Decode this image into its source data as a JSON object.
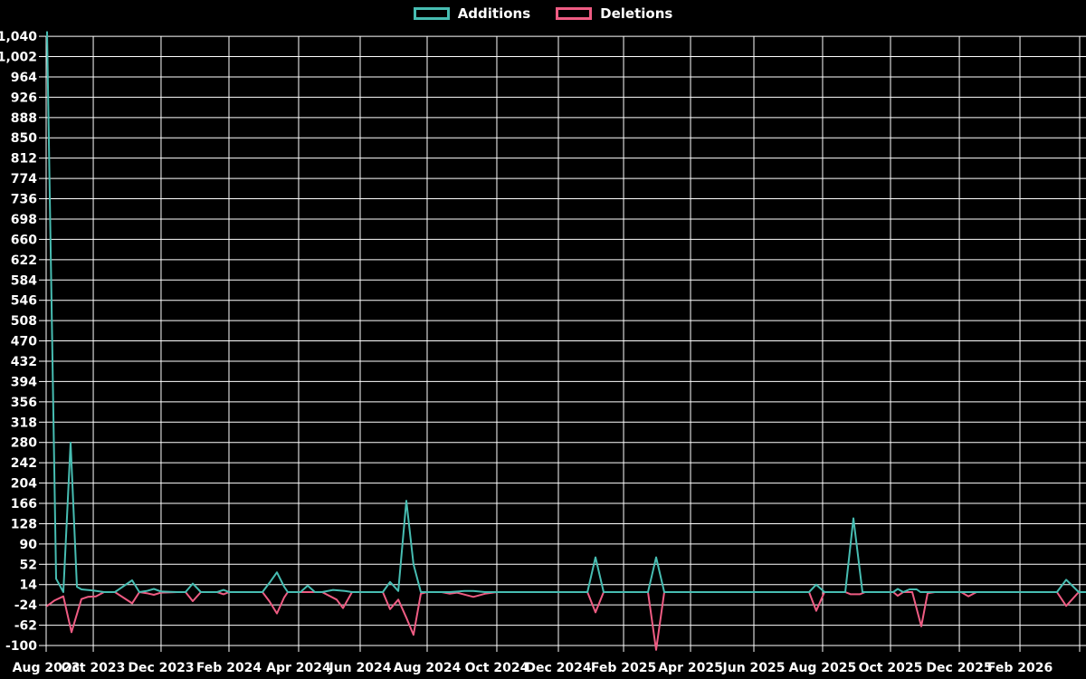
{
  "chart_data": {
    "type": "line",
    "title": "",
    "background_color": "#000000",
    "grid": true,
    "grid_color": "#ffffff",
    "text_color": "#ffffff",
    "legend_position": "top-center",
    "y_axis": {
      "max": 1040,
      "step": 38,
      "min": -100,
      "tick_labels": [
        "1,040",
        "1,002",
        "964",
        "926",
        "888",
        "850",
        "812",
        "774",
        "736",
        "698",
        "660",
        "622",
        "584",
        "546",
        "508",
        "470",
        "432",
        "394",
        "356",
        "318",
        "280",
        "242",
        "204",
        "166",
        "128",
        "90",
        "52",
        "14",
        "-24",
        "-62",
        "-100"
      ]
    },
    "x_axis": {
      "ticks": [
        {
          "label": "Aug 2023",
          "pos": 0.0
        },
        {
          "label": "Oct 2023",
          "pos": 4.53
        },
        {
          "label": "Dec 2023",
          "pos": 11.05
        },
        {
          "label": "Feb 2024",
          "pos": 17.58
        },
        {
          "label": "Apr 2024",
          "pos": 24.28
        },
        {
          "label": "Jun 2024",
          "pos": 30.2
        },
        {
          "label": "Aug 2024",
          "pos": 36.64
        },
        {
          "label": "Oct 2024",
          "pos": 43.34
        },
        {
          "label": "Dec 2024",
          "pos": 49.26
        },
        {
          "label": "Feb 2025",
          "pos": 55.53
        },
        {
          "label": "Apr 2025",
          "pos": 61.97
        },
        {
          "label": "Jun 2025",
          "pos": 68.06
        },
        {
          "label": "Aug 2025",
          "pos": 74.67
        },
        {
          "label": "Oct 2025",
          "pos": 81.2
        },
        {
          "label": "Dec 2025",
          "pos": 87.82
        },
        {
          "label": "Feb 2026",
          "pos": 93.65
        },
        {
          "label": "",
          "pos": 99.39
        }
      ]
    },
    "series": [
      {
        "name": "Additions",
        "color": "#47bdb2",
        "points": [
          [
            0.09,
            1048
          ],
          [
            0.96,
            25
          ],
          [
            1.65,
            0
          ],
          [
            2.35,
            280
          ],
          [
            2.96,
            10
          ],
          [
            3.39,
            5
          ],
          [
            4.53,
            3
          ],
          [
            5.57,
            0
          ],
          [
            6.61,
            0
          ],
          [
            8.27,
            22
          ],
          [
            8.96,
            0
          ],
          [
            9.66,
            2
          ],
          [
            10.36,
            6
          ],
          [
            11.05,
            1
          ],
          [
            12.62,
            0
          ],
          [
            13.4,
            0
          ],
          [
            14.1,
            16
          ],
          [
            14.88,
            0
          ],
          [
            16.45,
            0
          ],
          [
            17.06,
            4
          ],
          [
            17.58,
            0
          ],
          [
            20.8,
            0
          ],
          [
            21.5,
            18
          ],
          [
            22.19,
            37
          ],
          [
            22.89,
            10
          ],
          [
            23.24,
            0
          ],
          [
            24.46,
            0
          ],
          [
            25.15,
            12
          ],
          [
            25.85,
            0
          ],
          [
            26.54,
            0
          ],
          [
            27.59,
            4
          ],
          [
            28.72,
            2
          ],
          [
            29.42,
            0
          ],
          [
            32.38,
            0
          ],
          [
            33.07,
            19
          ],
          [
            33.86,
            2
          ],
          [
            34.64,
            171
          ],
          [
            35.33,
            52
          ],
          [
            36.03,
            0
          ],
          [
            38.03,
            0
          ],
          [
            38.82,
            0
          ],
          [
            40.21,
            2
          ],
          [
            41.08,
            2
          ],
          [
            42.21,
            0
          ],
          [
            52.05,
            0
          ],
          [
            52.83,
            65
          ],
          [
            53.61,
            0
          ],
          [
            57.88,
            0
          ],
          [
            58.66,
            65
          ],
          [
            59.44,
            0
          ],
          [
            73.37,
            0
          ],
          [
            74.06,
            14
          ],
          [
            74.85,
            0
          ],
          [
            76.85,
            0
          ],
          [
            77.63,
            138
          ],
          [
            78.5,
            0
          ],
          [
            81.46,
            0
          ],
          [
            81.9,
            6
          ],
          [
            82.42,
            0
          ],
          [
            83.03,
            5
          ],
          [
            83.72,
            5
          ],
          [
            84.07,
            0
          ],
          [
            87.99,
            0
          ],
          [
            88.69,
            0
          ],
          [
            97.21,
            0
          ],
          [
            98.09,
            23
          ],
          [
            99.3,
            0
          ],
          [
            100.0,
            0
          ]
        ]
      },
      {
        "name": "Deletions",
        "color": "#ef5c83",
        "points": [
          [
            0.09,
            -26
          ],
          [
            0.78,
            -16
          ],
          [
            1.65,
            -8
          ],
          [
            2.44,
            -75
          ],
          [
            3.39,
            -13
          ],
          [
            4.0,
            -9
          ],
          [
            4.79,
            -8
          ],
          [
            5.57,
            0
          ],
          [
            6.61,
            0
          ],
          [
            8.27,
            -21
          ],
          [
            8.96,
            0
          ],
          [
            9.66,
            -2
          ],
          [
            10.36,
            -5
          ],
          [
            11.05,
            -1
          ],
          [
            12.62,
            0
          ],
          [
            13.4,
            0
          ],
          [
            14.1,
            -17
          ],
          [
            14.88,
            0
          ],
          [
            16.45,
            0
          ],
          [
            17.06,
            -4
          ],
          [
            17.58,
            0
          ],
          [
            20.8,
            0
          ],
          [
            21.5,
            -18
          ],
          [
            22.19,
            -40
          ],
          [
            22.89,
            -10
          ],
          [
            23.24,
            0
          ],
          [
            24.46,
            0
          ],
          [
            25.85,
            0
          ],
          [
            26.54,
            0
          ],
          [
            27.94,
            -14
          ],
          [
            28.55,
            -30
          ],
          [
            29.42,
            0
          ],
          [
            32.38,
            0
          ],
          [
            33.07,
            -32
          ],
          [
            33.86,
            -14
          ],
          [
            34.64,
            -48
          ],
          [
            35.33,
            -80
          ],
          [
            36.03,
            -3
          ],
          [
            36.64,
            0
          ],
          [
            38.03,
            0
          ],
          [
            38.82,
            -3
          ],
          [
            39.51,
            -1
          ],
          [
            41.08,
            -9
          ],
          [
            42.21,
            -3
          ],
          [
            43.34,
            0
          ],
          [
            52.05,
            0
          ],
          [
            52.83,
            -38
          ],
          [
            53.61,
            0
          ],
          [
            57.88,
            0
          ],
          [
            58.66,
            -108
          ],
          [
            59.44,
            0
          ],
          [
            73.37,
            0
          ],
          [
            74.06,
            -35
          ],
          [
            74.85,
            0
          ],
          [
            76.85,
            0
          ],
          [
            77.37,
            -4
          ],
          [
            78.24,
            -4
          ],
          [
            78.76,
            0
          ],
          [
            81.46,
            0
          ],
          [
            81.9,
            -7
          ],
          [
            82.42,
            0
          ],
          [
            83.29,
            0
          ],
          [
            84.16,
            -64
          ],
          [
            84.77,
            -2
          ],
          [
            85.47,
            0
          ],
          [
            87.99,
            0
          ],
          [
            88.69,
            -8
          ],
          [
            89.47,
            0
          ],
          [
            97.21,
            0
          ],
          [
            98.09,
            -26
          ],
          [
            99.3,
            0
          ],
          [
            100.0,
            0
          ]
        ]
      }
    ]
  }
}
